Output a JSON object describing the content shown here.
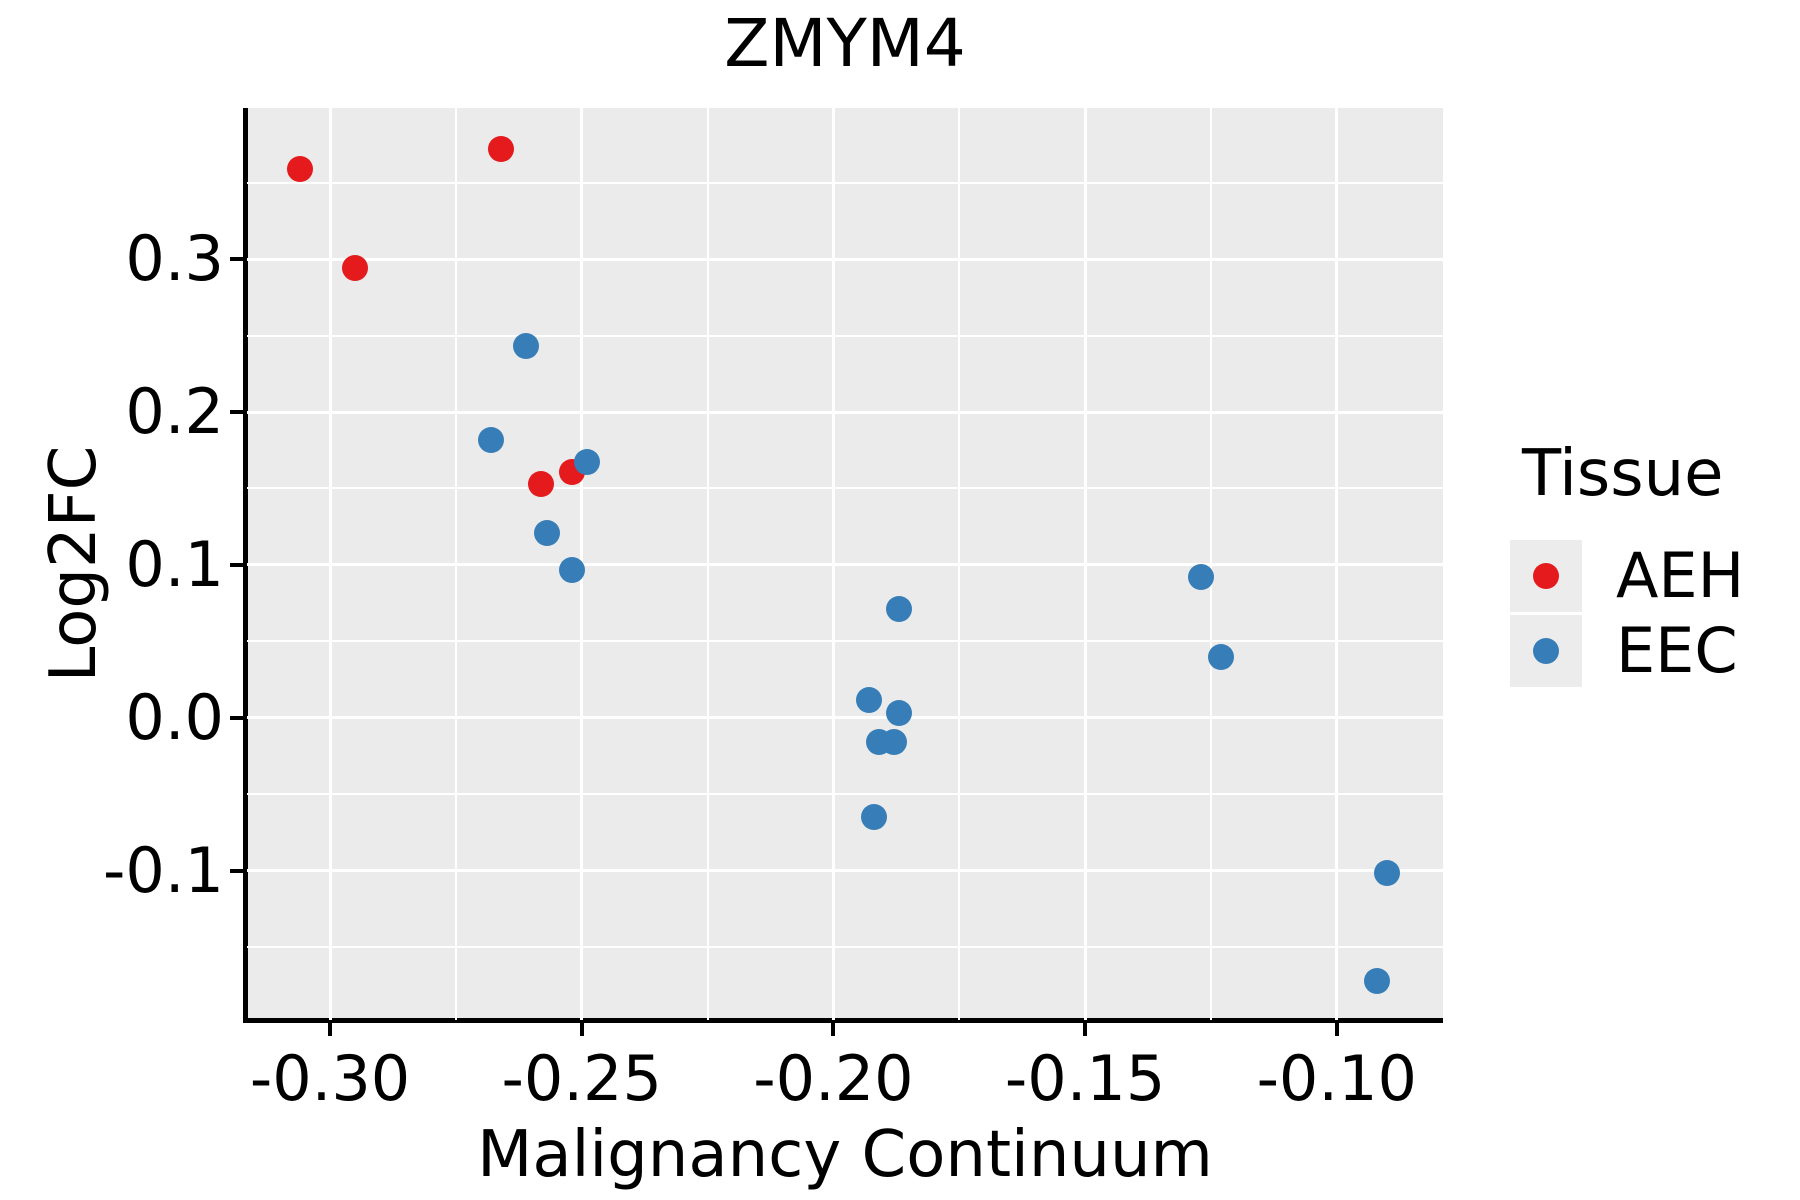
{
  "title": "ZMYM4",
  "axes": {
    "x": {
      "label": "Malignancy Continuum",
      "ticks": [
        -0.3,
        -0.25,
        -0.2,
        -0.15,
        -0.1
      ],
      "tick_labels": [
        "-0.30",
        "-0.25",
        "-0.20",
        "-0.15",
        "-0.10"
      ],
      "minor_ticks": [
        -0.275,
        -0.225,
        -0.175,
        -0.125
      ],
      "range": [
        -0.3165,
        -0.0789
      ]
    },
    "y": {
      "label": "Log2FC",
      "ticks": [
        0.3,
        0.2,
        0.1,
        0.0,
        -0.1
      ],
      "tick_labels": [
        "0.3",
        "0.2",
        "0.1",
        "0.0",
        "-0.1"
      ],
      "minor_ticks": [
        0.35,
        0.25,
        0.15,
        0.05,
        -0.05,
        -0.15
      ],
      "range": [
        -0.1974,
        0.3987
      ]
    }
  },
  "legend": {
    "title": "Tissue",
    "entries": [
      {
        "label": "AEH",
        "color": "#e41a1c"
      },
      {
        "label": "EEC",
        "color": "#377eb8"
      }
    ]
  },
  "colors": {
    "panel_background": "#ebebeb",
    "grid": "#ffffff",
    "axis": "#000000",
    "text": "#000000",
    "aeh": "#e41a1c",
    "eec": "#377eb8"
  },
  "chart_data": {
    "type": "scatter",
    "title": "ZMYM4",
    "xlabel": "Malignancy Continuum",
    "ylabel": "Log2FC",
    "xlim": [
      -0.3165,
      -0.0789
    ],
    "ylim": [
      -0.1974,
      0.3987
    ],
    "grid": "white major+minor gridlines on gray panel",
    "legend_position": "right",
    "series": [
      {
        "name": "AEH",
        "color": "#e41a1c",
        "points": [
          [
            -0.306,
            0.359
          ],
          [
            -0.295,
            0.294
          ],
          [
            -0.266,
            0.372
          ],
          [
            -0.258,
            0.153
          ],
          [
            -0.252,
            0.161
          ]
        ]
      },
      {
        "name": "EEC",
        "color": "#377eb8",
        "points": [
          [
            -0.268,
            0.182
          ],
          [
            -0.261,
            0.243
          ],
          [
            -0.257,
            0.121
          ],
          [
            -0.252,
            0.097
          ],
          [
            -0.249,
            0.167
          ],
          [
            -0.193,
            0.012
          ],
          [
            -0.192,
            -0.065
          ],
          [
            -0.191,
            -0.016
          ],
          [
            -0.188,
            -0.016
          ],
          [
            -0.187,
            0.071
          ],
          [
            -0.187,
            0.003
          ],
          [
            -0.127,
            0.092
          ],
          [
            -0.123,
            0.04
          ],
          [
            -0.092,
            -0.172
          ],
          [
            -0.09,
            -0.101
          ]
        ]
      }
    ]
  }
}
